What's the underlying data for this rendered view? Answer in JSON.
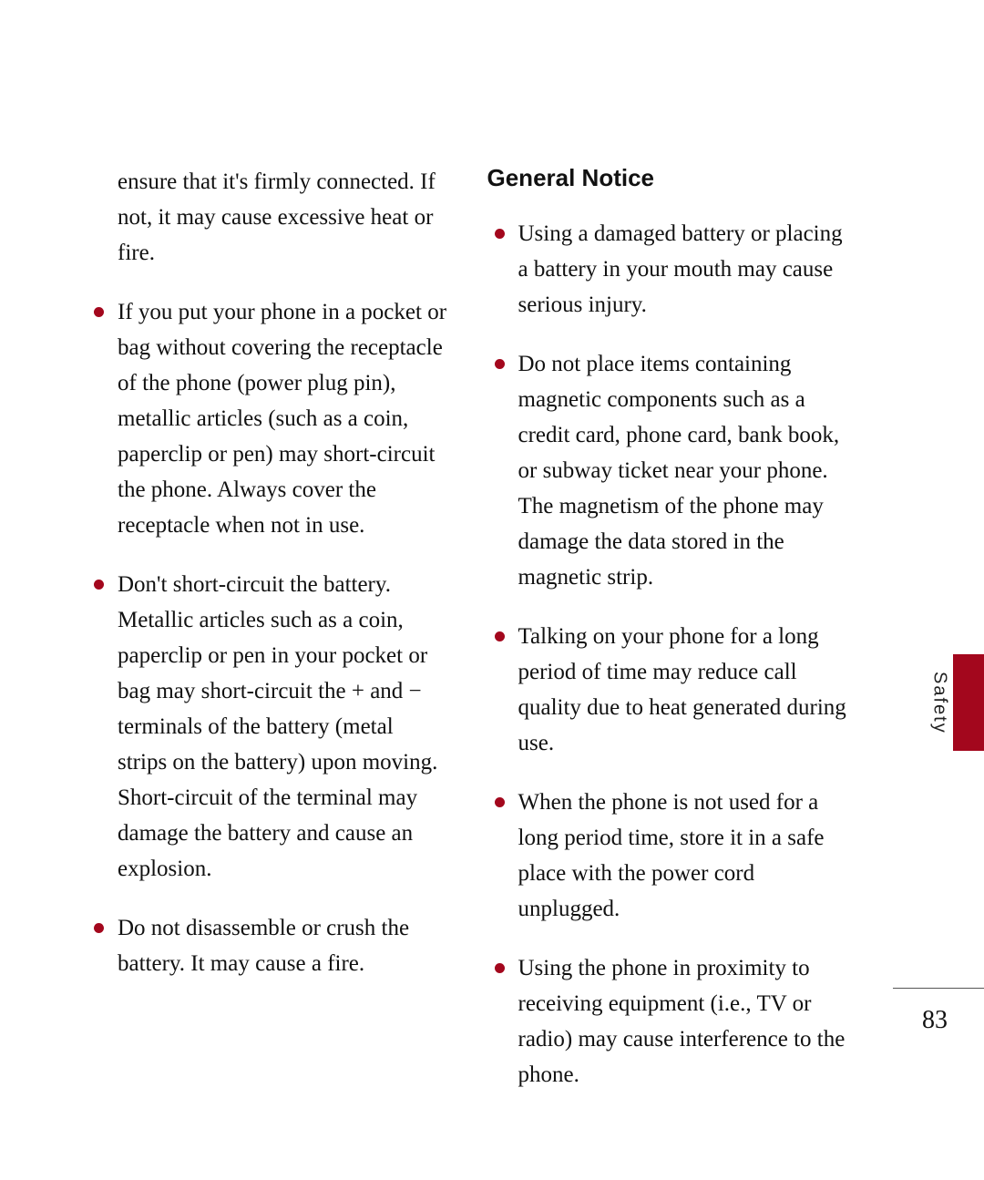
{
  "columns": {
    "left": {
      "lead": "ensure that it's firmly connected. If not, it may cause excessive heat or fire.",
      "items": [
        "If you put your phone in a pocket or bag without covering the receptacle of the phone (power plug pin), metallic articles (such as a coin, paperclip or pen) may short-circuit the phone. Always cover the receptacle when not in use.",
        "Don't short-circuit the battery. Metallic articles such as a coin, paperclip or pen in your pocket or bag may short-circuit the + and − terminals of the battery (metal strips on the battery) upon moving. Short-circuit of the terminal may damage the battery and cause an explosion.",
        "Do not disassemble or crush the battery. It may cause a fire."
      ]
    },
    "right": {
      "heading": "General Notice",
      "items": [
        "Using a damaged battery or placing a battery in your mouth may cause serious injury.",
        "Do not place items containing magnetic components such as a credit card, phone card, bank book, or subway ticket near your phone. The magnetism of the phone may damage the data stored in the magnetic strip.",
        "Talking on your phone for a long period of time may reduce call quality due to heat generated during use.",
        "When the phone is not used for a long period time, store it in a safe place with the power cord unplugged.",
        "Using the phone in proximity to receiving equipment (i.e., TV or radio) may cause interference to the phone."
      ]
    }
  },
  "side_label": "Safety",
  "page_number": "83",
  "colors": {
    "accent": "#a3071d",
    "text": "#111111",
    "background": "#ffffff"
  }
}
